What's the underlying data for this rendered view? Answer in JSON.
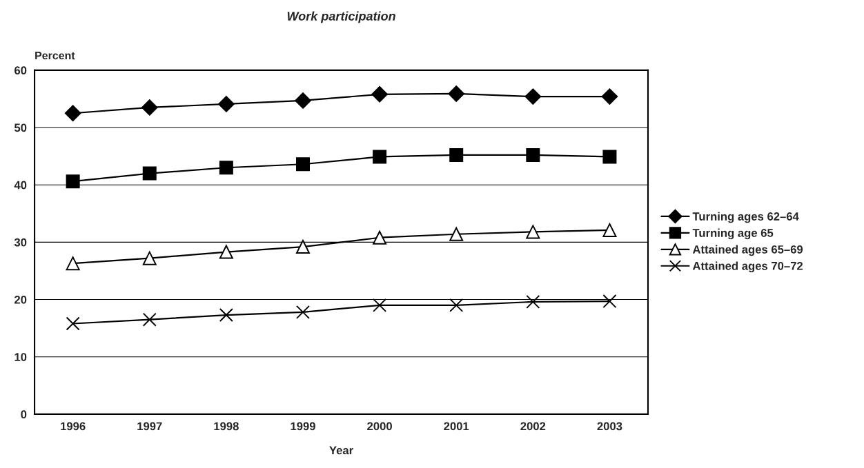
{
  "chart_data": {
    "type": "line",
    "title": "Work participation",
    "xlabel": "Year",
    "ylabel": "Percent",
    "categories": [
      "1996",
      "1997",
      "1998",
      "1999",
      "2000",
      "2001",
      "2002",
      "2003"
    ],
    "series": [
      {
        "name": "Turning ages 62–64",
        "color": "#000000",
        "marker": "diamond",
        "values": [
          52.5,
          53.5,
          54.1,
          54.7,
          55.8,
          55.9,
          55.4,
          55.4
        ]
      },
      {
        "name": "Turning age 65",
        "color": "#000000",
        "marker": "square",
        "values": [
          40.6,
          42.0,
          43.0,
          43.6,
          44.9,
          45.2,
          45.2,
          44.9
        ]
      },
      {
        "name": "Attained ages 65–69",
        "color": "#000000",
        "marker": "triangle",
        "values": [
          26.3,
          27.2,
          28.3,
          29.2,
          30.8,
          31.4,
          31.8,
          32.1
        ]
      },
      {
        "name": "Attained ages 70–72",
        "color": "#000000",
        "marker": "cross",
        "values": [
          15.8,
          16.5,
          17.3,
          17.8,
          19.0,
          19.0,
          19.6,
          19.7
        ]
      }
    ],
    "ylim": [
      0,
      60
    ],
    "yticks": [
      0,
      10,
      20,
      30,
      40,
      50,
      60
    ],
    "grid": "y",
    "legend": "right",
    "line_style": "solid"
  }
}
